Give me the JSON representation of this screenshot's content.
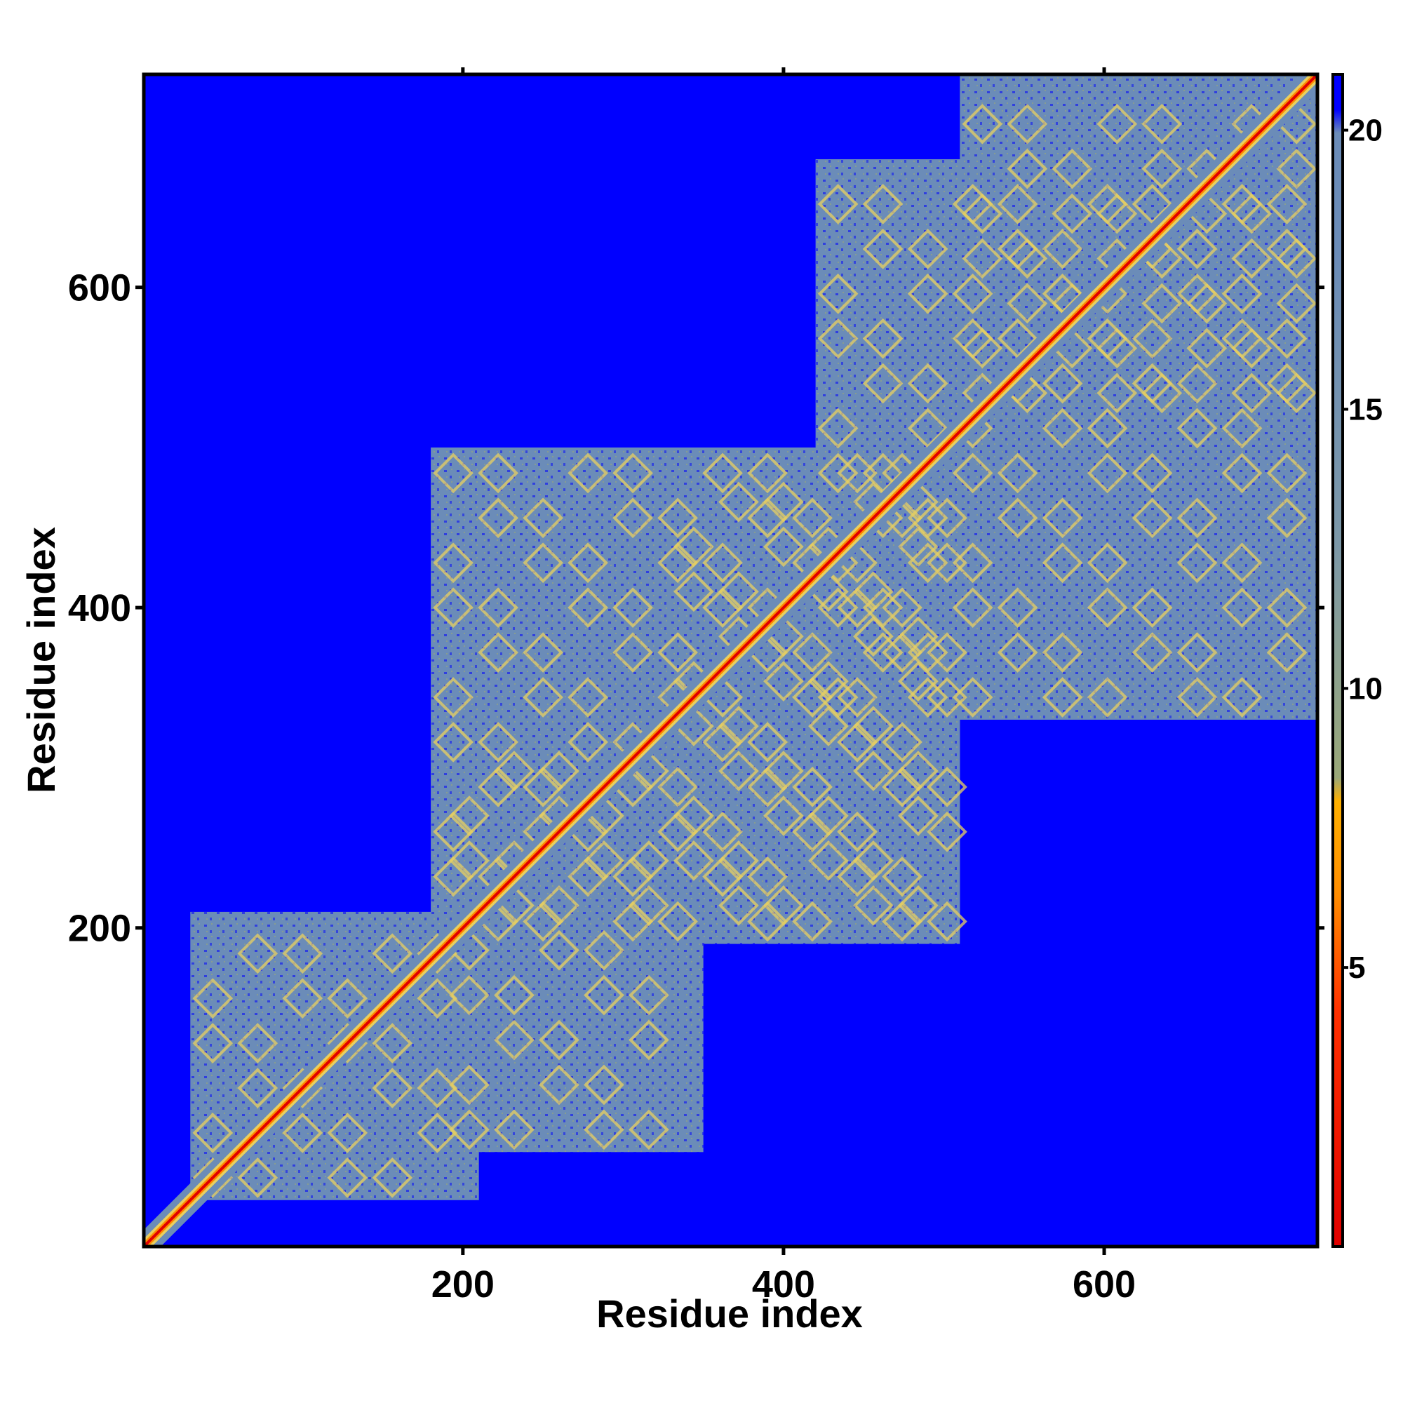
{
  "chart_data": {
    "type": "heatmap",
    "title": "",
    "xlabel": "Residue index",
    "ylabel": "Residue index",
    "xlim": [
      1,
      733
    ],
    "ylim": [
      1,
      733
    ],
    "x_ticks": [
      200,
      400,
      600
    ],
    "y_ticks": [
      200,
      400,
      600
    ],
    "grid": false,
    "colorbar": {
      "placement": "right",
      "range": [
        0,
        21
      ],
      "ticks": [
        5,
        10,
        15,
        20
      ],
      "colors": {
        "near": "#e00000",
        "mid": "#ff8c00",
        "yellow": "#e8d060",
        "pale": "#9aa878",
        "contact": "#6b8cb8",
        "far": "#0000ff"
      }
    },
    "diagonal": "distance 0 along y = x",
    "blocks": [
      {
        "x": [
          30,
          210
        ],
        "y": [
          30,
          210
        ],
        "level": "contact"
      },
      {
        "x": [
          190,
          350
        ],
        "y": [
          60,
          320
        ],
        "level": "contact"
      },
      {
        "x": [
          180,
          510
        ],
        "y": [
          190,
          500
        ],
        "level": "contact"
      },
      {
        "x": [
          330,
          510
        ],
        "y": [
          200,
          480
        ],
        "level": "contact"
      },
      {
        "x": [
          510,
          733
        ],
        "y": [
          520,
          733
        ],
        "level": "contact"
      },
      {
        "x": [
          420,
          733
        ],
        "y": [
          330,
          680
        ],
        "level": "contact"
      }
    ]
  }
}
